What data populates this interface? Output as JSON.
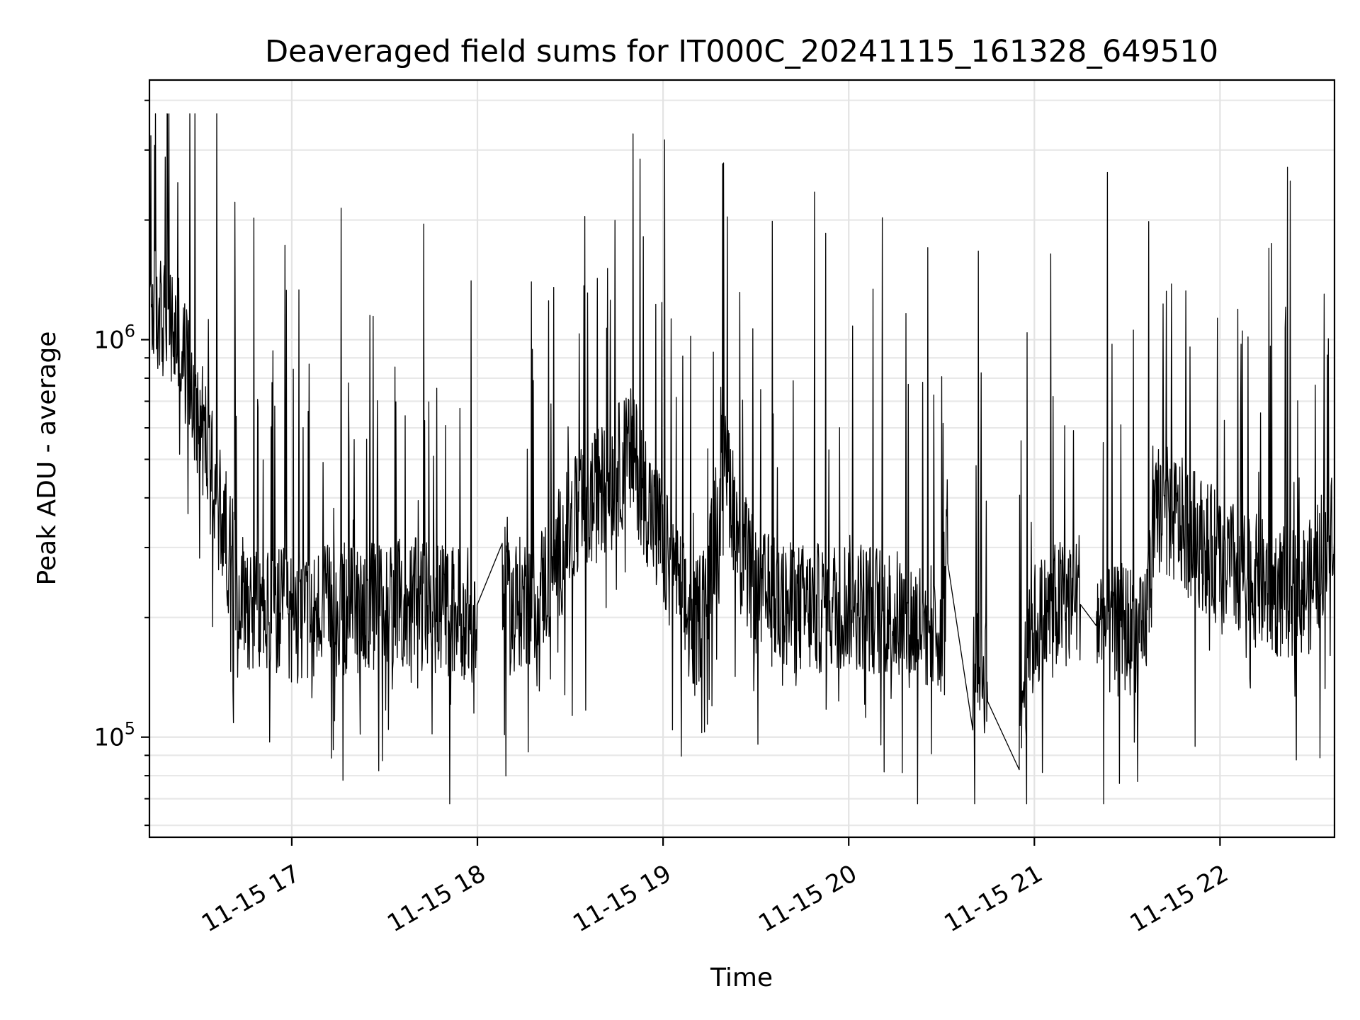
{
  "chart_data": {
    "type": "line",
    "title": "Deaveraged field sums for IT000C_20241115_161328_649510",
    "xlabel": "Time",
    "ylabel": "Peak ADU - average",
    "yscale": "log",
    "ylim": [
      56000,
      4500000
    ],
    "xlim": [
      "2024-11-15 16:14",
      "2024-11-15 22:37"
    ],
    "grid": true,
    "line_color": "#000000",
    "x_ticks": [
      {
        "t": "2024-11-15 17:00",
        "label": "11-15 17"
      },
      {
        "t": "2024-11-15 18:00",
        "label": "11-15 18"
      },
      {
        "t": "2024-11-15 19:00",
        "label": "11-15 19"
      },
      {
        "t": "2024-11-15 20:00",
        "label": "11-15 20"
      },
      {
        "t": "2024-11-15 21:00",
        "label": "11-15 21"
      },
      {
        "t": "2024-11-15 22:00",
        "label": "11-15 22"
      }
    ],
    "y_ticks": [
      {
        "value": 100000,
        "mantissa": "10",
        "exponent": "5"
      },
      {
        "value": 1000000,
        "mantissa": "10",
        "exponent": "6"
      }
    ],
    "series": [
      {
        "time": [
          "2024-11-15 16:14",
          "2024-11-15 16:17",
          "2024-11-15 16:20",
          "2024-11-15 16:23",
          "2024-11-15 16:26",
          "2024-11-15 16:29",
          "2024-11-15 16:32",
          "2024-11-15 16:35",
          "2024-11-15 16:38",
          "2024-11-15 16:41",
          "2024-11-15 16:44",
          "2024-11-15 16:47",
          "2024-11-15 16:50",
          "2024-11-15 16:55",
          "2024-11-15 17:00",
          "2024-11-15 17:10",
          "2024-11-15 17:20",
          "2024-11-15 17:30",
          "2024-11-15 17:40",
          "2024-11-15 17:50",
          "2024-11-15 17:57",
          "2024-11-15 18:00",
          "2024-11-15 18:08",
          "2024-11-15 18:10",
          "2024-11-15 18:20",
          "2024-11-15 18:30",
          "2024-11-15 18:40",
          "2024-11-15 18:50",
          "2024-11-15 19:00",
          "2024-11-15 19:10",
          "2024-11-15 19:15",
          "2024-11-15 19:20",
          "2024-11-15 19:25",
          "2024-11-15 19:30",
          "2024-11-15 19:40",
          "2024-11-15 19:50",
          "2024-11-15 20:00",
          "2024-11-15 20:10",
          "2024-11-15 20:20",
          "2024-11-15 20:30",
          "2024-11-15 20:32",
          "2024-11-15 20:40",
          "2024-11-15 20:45",
          "2024-11-15 20:55",
          "2024-11-15 21:00",
          "2024-11-15 21:10",
          "2024-11-15 21:15",
          "2024-11-15 21:20",
          "2024-11-15 21:25",
          "2024-11-15 21:30",
          "2024-11-15 21:35",
          "2024-11-15 21:40",
          "2024-11-15 21:50",
          "2024-11-15 22:00",
          "2024-11-15 22:10",
          "2024-11-15 22:20",
          "2024-11-15 22:30",
          "2024-11-15 22:37"
        ],
        "values": [
          1300000,
          1150000,
          1100000,
          1000000,
          850000,
          700000,
          560000,
          420000,
          340000,
          270000,
          230000,
          215000,
          205000,
          205000,
          200000,
          205000,
          210000,
          215000,
          215000,
          210000,
          205000,
          160000,
          245000,
          210000,
          230000,
          330000,
          420000,
          520000,
          300000,
          180000,
          250000,
          520000,
          300000,
          230000,
          210000,
          210000,
          220000,
          210000,
          195000,
          190000,
          340000,
          145000,
          150000,
          115000,
          190000,
          220000,
          230000,
          200000,
          180000,
          190000,
          170000,
          380000,
          330000,
          280000,
          250000,
          230000,
          240000,
          380000
        ]
      }
    ]
  }
}
